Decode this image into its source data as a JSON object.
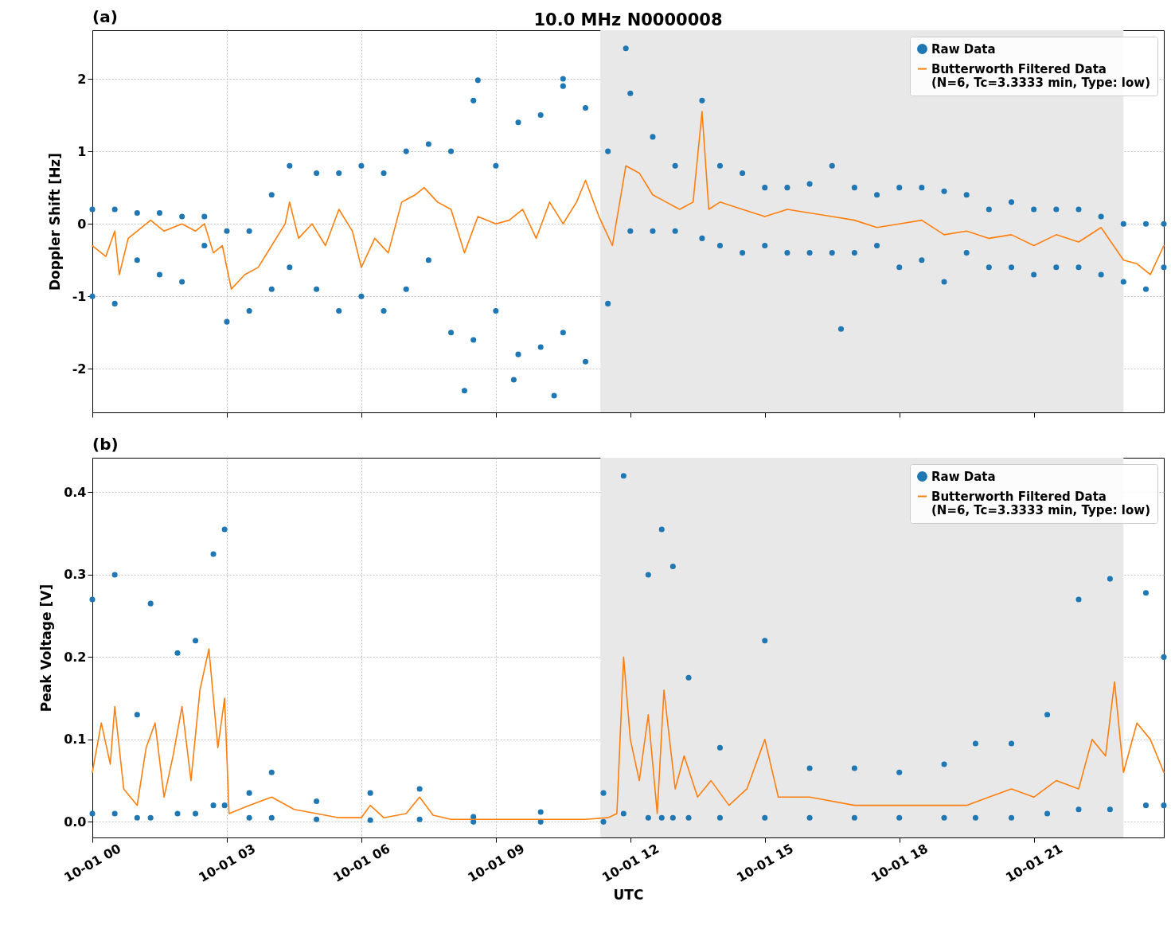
{
  "chart_data": [
    {
      "type": "scatter",
      "title": "10.0 MHz N0000008",
      "ylabel": "Doppler Shift [Hz]",
      "annotations": [
        "(a)"
      ],
      "tick_labels": "y",
      "grid": true,
      "legend": "top right",
      "xlim": [
        "--10-01T00:00",
        "--10-01T23:54"
      ],
      "xticks": [
        {
          "value": "--10-01T00:00",
          "label": "10-01 00"
        },
        {
          "value": "--10-01T03:00",
          "label": "10-01 03"
        },
        {
          "value": "--10-01T06:00",
          "label": "10-01 06"
        },
        {
          "value": "--10-01T09:00",
          "label": "10-01 09"
        },
        {
          "value": "--10-01T12:00",
          "label": "10-01 12"
        },
        {
          "value": "--10-01T15:00",
          "label": "10-01 15"
        },
        {
          "value": "--10-01T18:00",
          "label": "10-01 18"
        },
        {
          "value": "--10-01T21:00",
          "label": "10-01 21"
        }
      ],
      "ylim": [
        -2.6,
        2.67
      ],
      "yticks": [
        -2,
        -1,
        0,
        1,
        2
      ],
      "bands": [
        {
          "axis": "x",
          "from": "--10-01T11:20",
          "to": "--10-01T23:00",
          "color": "#e8e8e8"
        }
      ],
      "series": [
        {
          "name": "Raw Data",
          "type": "scatter",
          "color": "#1f77b4",
          "x": [
            "--10-01T00:00",
            "--10-01T00:00",
            "--10-01T00:30",
            "--10-01T00:30",
            "--10-01T01:00",
            "--10-01T01:00",
            "--10-01T01:30",
            "--10-01T01:30",
            "--10-01T02:00",
            "--10-01T02:00",
            "--10-01T02:30",
            "--10-01T02:30",
            "--10-01T03:00",
            "--10-01T03:00",
            "--10-01T03:30",
            "--10-01T03:30",
            "--10-01T04:00",
            "--10-01T04:00",
            "--10-01T04:24",
            "--10-01T04:24",
            "--10-01T05:00",
            "--10-01T05:00",
            "--10-01T05:30",
            "--10-01T05:30",
            "--10-01T06:00",
            "--10-01T06:00",
            "--10-01T06:30",
            "--10-01T06:30",
            "--10-01T07:00",
            "--10-01T07:00",
            "--10-01T07:30",
            "--10-01T07:30",
            "--10-01T08:00",
            "--10-01T08:00",
            "--10-01T08:30",
            "--10-01T08:30",
            "--10-01T09:00",
            "--10-01T09:00",
            "--10-01T09:30",
            "--10-01T09:30",
            "--10-01T10:00",
            "--10-01T10:00",
            "--10-01T10:30",
            "--10-01T10:30",
            "--10-01T11:00",
            "--10-01T11:00",
            "--10-01T11:30",
            "--10-01T11:30",
            "--10-01T12:00",
            "--10-01T12:00",
            "--10-01T12:30",
            "--10-01T12:30",
            "--10-01T13:00",
            "--10-01T13:00",
            "--10-01T13:36",
            "--10-01T13:36",
            "--10-01T14:00",
            "--10-01T14:00",
            "--10-01T14:30",
            "--10-01T14:30",
            "--10-01T15:00",
            "--10-01T15:00",
            "--10-01T15:30",
            "--10-01T15:30",
            "--10-01T16:00",
            "--10-01T16:00",
            "--10-01T16:30",
            "--10-01T16:30",
            "--10-01T17:00",
            "--10-01T17:00",
            "--10-01T17:30",
            "--10-01T17:30",
            "--10-01T18:00",
            "--10-01T18:00",
            "--10-01T18:30",
            "--10-01T18:30",
            "--10-01T19:00",
            "--10-01T19:00",
            "--10-01T19:30",
            "--10-01T19:30",
            "--10-01T20:00",
            "--10-01T20:00",
            "--10-01T20:30",
            "--10-01T20:30",
            "--10-01T21:00",
            "--10-01T21:00",
            "--10-01T21:30",
            "--10-01T21:30",
            "--10-01T22:00",
            "--10-01T22:00",
            "--10-01T22:30",
            "--10-01T22:30",
            "--10-01T23:00",
            "--10-01T23:00",
            "--10-01T23:30",
            "--10-01T23:30",
            "--10-01T23:54",
            "--10-01T23:54",
            "--10-01T08:18",
            "--10-01T08:36",
            "--10-01T10:18",
            "--10-01T09:24",
            "--10-01T11:54",
            "--10-01T16:42",
            "--10-01T10:30"
          ],
          "values": [
            0.2,
            -1.0,
            0.2,
            -1.1,
            0.15,
            -0.5,
            0.15,
            -0.7,
            0.1,
            -0.8,
            0.1,
            -0.3,
            -0.1,
            -1.35,
            -0.1,
            -1.2,
            0.4,
            -0.9,
            0.8,
            -0.6,
            0.7,
            -0.9,
            0.7,
            -1.2,
            0.8,
            -1.0,
            0.7,
            -1.2,
            1.0,
            -0.9,
            1.1,
            -0.5,
            1.0,
            -1.5,
            1.7,
            -1.6,
            0.8,
            -1.2,
            1.4,
            -1.8,
            1.5,
            -1.7,
            1.9,
            -1.5,
            1.6,
            -1.9,
            1.0,
            -1.1,
            1.8,
            -0.1,
            1.2,
            -0.1,
            0.8,
            -0.1,
            1.7,
            -0.2,
            0.8,
            -0.3,
            0.7,
            -0.4,
            0.5,
            -0.3,
            0.5,
            -0.4,
            0.55,
            -0.4,
            0.8,
            -0.4,
            0.5,
            -0.4,
            0.4,
            -0.3,
            0.5,
            -0.6,
            0.5,
            -0.5,
            0.45,
            -0.8,
            0.4,
            -0.4,
            0.2,
            -0.6,
            0.3,
            -0.6,
            0.2,
            -0.7,
            0.2,
            -0.6,
            0.2,
            -0.6,
            0.1,
            -0.7,
            0.0,
            -0.8,
            0.0,
            -0.9,
            0.0,
            -0.6,
            -2.3,
            1.98,
            -2.37,
            -2.15,
            2.42,
            -1.45,
            2.0
          ]
        },
        {
          "name": "Butterworth Filtered Data\n(N=6, Tc=3.3333 min, Type: low)",
          "type": "line",
          "color": "#ff7f0e",
          "x": [
            "--10-01T00:00",
            "--10-01T00:18",
            "--10-01T00:30",
            "--10-01T00:36",
            "--10-01T00:48",
            "--10-01T01:00",
            "--10-01T01:18",
            "--10-01T01:36",
            "--10-01T02:00",
            "--10-01T02:18",
            "--10-01T02:30",
            "--10-01T02:42",
            "--10-01T02:54",
            "--10-01T03:06",
            "--10-01T03:24",
            "--10-01T03:42",
            "--10-01T04:00",
            "--10-01T04:18",
            "--10-01T04:24",
            "--10-01T04:36",
            "--10-01T04:54",
            "--10-01T05:12",
            "--10-01T05:30",
            "--10-01T05:48",
            "--10-01T06:00",
            "--10-01T06:18",
            "--10-01T06:36",
            "--10-01T06:54",
            "--10-01T07:12",
            "--10-01T07:24",
            "--10-01T07:42",
            "--10-01T08:00",
            "--10-01T08:18",
            "--10-01T08:36",
            "--10-01T09:00",
            "--10-01T09:18",
            "--10-01T09:36",
            "--10-01T09:54",
            "--10-01T10:12",
            "--10-01T10:30",
            "--10-01T10:48",
            "--10-01T11:00",
            "--10-01T11:18",
            "--10-01T11:36",
            "--10-01T11:54",
            "--10-01T12:12",
            "--10-01T12:30",
            "--10-01T12:48",
            "--10-01T13:06",
            "--10-01T13:24",
            "--10-01T13:36",
            "--10-01T13:45",
            "--10-01T14:00",
            "--10-01T14:30",
            "--10-01T15:00",
            "--10-01T15:30",
            "--10-01T16:00",
            "--10-01T16:30",
            "--10-01T17:00",
            "--10-01T17:30",
            "--10-01T18:00",
            "--10-01T18:30",
            "--10-01T19:00",
            "--10-01T19:30",
            "--10-01T20:00",
            "--10-01T20:30",
            "--10-01T21:00",
            "--10-01T21:30",
            "--10-01T22:00",
            "--10-01T22:30",
            "--10-01T23:00",
            "--10-01T23:18",
            "--10-01T23:36",
            "--10-01T23:54"
          ],
          "values": [
            -0.3,
            -0.45,
            -0.1,
            -0.7,
            -0.2,
            -0.1,
            0.05,
            -0.1,
            0.0,
            -0.1,
            0.0,
            -0.4,
            -0.3,
            -0.9,
            -0.7,
            -0.6,
            -0.3,
            0.0,
            0.3,
            -0.2,
            0.0,
            -0.3,
            0.2,
            -0.1,
            -0.6,
            -0.2,
            -0.4,
            0.3,
            0.4,
            0.5,
            0.3,
            0.2,
            -0.4,
            0.1,
            0.0,
            0.05,
            0.2,
            -0.2,
            0.3,
            0.0,
            0.3,
            0.6,
            0.1,
            -0.3,
            0.8,
            0.7,
            0.4,
            0.3,
            0.2,
            0.3,
            1.55,
            0.2,
            0.3,
            0.2,
            0.1,
            0.2,
            0.15,
            0.1,
            0.05,
            -0.05,
            0.0,
            0.05,
            -0.15,
            -0.1,
            -0.2,
            -0.15,
            -0.3,
            -0.15,
            -0.25,
            -0.05,
            -0.5,
            -0.55,
            -0.7,
            -0.3
          ]
        }
      ]
    },
    {
      "type": "scatter",
      "xlabel": "UTC",
      "ylabel": "Peak Voltage [V]",
      "annotations": [
        "(b)"
      ],
      "grid": true,
      "legend": "top right",
      "xlim": [
        "--10-01T00:00",
        "--10-01T23:54"
      ],
      "xticks": [
        {
          "value": "--10-01T00:00",
          "label": "10-01 00"
        },
        {
          "value": "--10-01T03:00",
          "label": "10-01 03"
        },
        {
          "value": "--10-01T06:00",
          "label": "10-01 06"
        },
        {
          "value": "--10-01T09:00",
          "label": "10-01 09"
        },
        {
          "value": "--10-01T12:00",
          "label": "10-01 12"
        },
        {
          "value": "--10-01T15:00",
          "label": "10-01 15"
        },
        {
          "value": "--10-01T18:00",
          "label": "10-01 18"
        },
        {
          "value": "--10-01T21:00",
          "label": "10-01 21"
        }
      ],
      "ylim": [
        -0.019,
        0.442
      ],
      "yticks": [
        {
          "value": 0,
          "label": "0.0"
        },
        {
          "value": 0.1,
          "label": "0.1"
        },
        {
          "value": 0.2,
          "label": "0.2"
        },
        {
          "value": 0.3,
          "label": "0.3"
        },
        {
          "value": 0.4,
          "label": "0.4"
        }
      ],
      "bands": [
        {
          "axis": "x",
          "from": "--10-01T11:20",
          "to": "--10-01T23:00",
          "color": "#e8e8e8"
        }
      ],
      "series": [
        {
          "name": "Raw Data",
          "type": "scatter",
          "color": "#1f77b4",
          "x": [
            "--10-01T00:00",
            "--10-01T00:00",
            "--10-01T00:30",
            "--10-01T00:30",
            "--10-01T01:00",
            "--10-01T01:00",
            "--10-01T01:18",
            "--10-01T01:18",
            "--10-01T01:54",
            "--10-01T01:54",
            "--10-01T02:18",
            "--10-01T02:18",
            "--10-01T02:42",
            "--10-01T02:42",
            "--10-01T02:57",
            "--10-01T02:57",
            "--10-01T03:30",
            "--10-01T03:30",
            "--10-01T04:00",
            "--10-01T04:00",
            "--10-01T05:00",
            "--10-01T05:00",
            "--10-01T06:12",
            "--10-01T06:12",
            "--10-01T07:18",
            "--10-01T07:18",
            "--10-01T08:30",
            "--10-01T08:30",
            "--10-01T10:00",
            "--10-01T10:00",
            "--10-01T11:24",
            "--10-01T11:24",
            "--10-01T11:51",
            "--10-01T11:51",
            "--10-01T12:24",
            "--10-01T12:24",
            "--10-01T12:42",
            "--10-01T12:42",
            "--10-01T12:57",
            "--10-01T12:57",
            "--10-01T13:18",
            "--10-01T13:18",
            "--10-01T14:00",
            "--10-01T14:00",
            "--10-01T15:00",
            "--10-01T15:00",
            "--10-01T16:00",
            "--10-01T16:00",
            "--10-01T17:00",
            "--10-01T17:00",
            "--10-01T18:00",
            "--10-01T18:00",
            "--10-01T19:00",
            "--10-01T19:00",
            "--10-01T19:42",
            "--10-01T19:42",
            "--10-01T20:30",
            "--10-01T20:30",
            "--10-01T21:18",
            "--10-01T21:18",
            "--10-01T22:00",
            "--10-01T22:00",
            "--10-01T22:42",
            "--10-01T22:42",
            "--10-01T23:30",
            "--10-01T23:30",
            "--10-01T23:54",
            "--10-01T23:54"
          ],
          "values": [
            0.27,
            0.01,
            0.3,
            0.01,
            0.13,
            0.005,
            0.265,
            0.005,
            0.205,
            0.01,
            0.22,
            0.01,
            0.325,
            0.02,
            0.355,
            0.02,
            0.035,
            0.005,
            0.06,
            0.005,
            0.025,
            0.003,
            0.035,
            0.002,
            0.04,
            0.003,
            0.006,
            0.0,
            0.012,
            0.0,
            0.035,
            0.0,
            0.42,
            0.01,
            0.3,
            0.005,
            0.355,
            0.005,
            0.31,
            0.005,
            0.175,
            0.005,
            0.09,
            0.005,
            0.22,
            0.005,
            0.065,
            0.005,
            0.065,
            0.005,
            0.06,
            0.005,
            0.07,
            0.005,
            0.095,
            0.005,
            0.095,
            0.005,
            0.13,
            0.01,
            0.27,
            0.015,
            0.295,
            0.015,
            0.278,
            0.02,
            0.2,
            0.02
          ]
        },
        {
          "name": "Butterworth Filtered Data\n(N=6, Tc=3.3333 min, Type: low)",
          "type": "line",
          "color": "#ff7f0e",
          "x": [
            "--10-01T00:00",
            "--10-01T00:12",
            "--10-01T00:24",
            "--10-01T00:30",
            "--10-01T00:42",
            "--10-01T01:00",
            "--10-01T01:12",
            "--10-01T01:24",
            "--10-01T01:36",
            "--10-01T01:48",
            "--10-01T02:00",
            "--10-01T02:12",
            "--10-01T02:24",
            "--10-01T02:36",
            "--10-01T02:48",
            "--10-01T02:57",
            "--10-01T03:03",
            "--10-01T03:30",
            "--10-01T04:00",
            "--10-01T04:30",
            "--10-01T05:00",
            "--10-01T05:30",
            "--10-01T06:00",
            "--10-01T06:12",
            "--10-01T06:30",
            "--10-01T07:00",
            "--10-01T07:18",
            "--10-01T07:36",
            "--10-01T08:00",
            "--10-01T09:00",
            "--10-01T10:00",
            "--10-01T11:00",
            "--10-01T11:30",
            "--10-01T11:42",
            "--10-01T11:51",
            "--10-01T12:00",
            "--10-01T12:12",
            "--10-01T12:24",
            "--10-01T12:36",
            "--10-01T12:45",
            "--10-01T13:00",
            "--10-01T13:12",
            "--10-01T13:30",
            "--10-01T13:48",
            "--10-01T14:12",
            "--10-01T14:36",
            "--10-01T15:00",
            "--10-01T15:18",
            "--10-01T16:00",
            "--10-01T17:00",
            "--10-01T18:00",
            "--10-01T19:00",
            "--10-01T19:30",
            "--10-01T20:00",
            "--10-01T20:30",
            "--10-01T21:00",
            "--10-01T21:30",
            "--10-01T22:00",
            "--10-01T22:18",
            "--10-01T22:36",
            "--10-01T22:48",
            "--10-01T23:00",
            "--10-01T23:18",
            "--10-01T23:36",
            "--10-01T23:54"
          ],
          "values": [
            0.06,
            0.12,
            0.07,
            0.14,
            0.04,
            0.02,
            0.09,
            0.12,
            0.03,
            0.08,
            0.14,
            0.05,
            0.16,
            0.21,
            0.09,
            0.15,
            0.01,
            0.02,
            0.03,
            0.015,
            0.01,
            0.005,
            0.005,
            0.02,
            0.005,
            0.01,
            0.03,
            0.008,
            0.003,
            0.003,
            0.003,
            0.003,
            0.005,
            0.01,
            0.2,
            0.1,
            0.05,
            0.13,
            0.01,
            0.16,
            0.04,
            0.08,
            0.03,
            0.05,
            0.02,
            0.04,
            0.1,
            0.03,
            0.03,
            0.02,
            0.02,
            0.02,
            0.02,
            0.03,
            0.04,
            0.03,
            0.05,
            0.04,
            0.1,
            0.08,
            0.17,
            0.06,
            0.12,
            0.1,
            0.06
          ]
        }
      ]
    }
  ]
}
